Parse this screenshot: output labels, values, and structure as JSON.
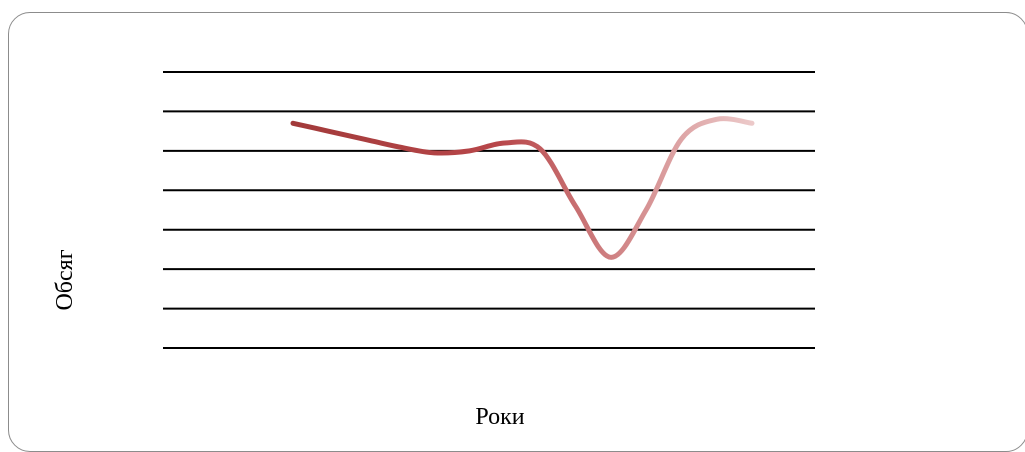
{
  "chart_data": {
    "type": "line",
    "title": "",
    "xlabel": "Роки",
    "ylabel": "Обсяг",
    "grid": true,
    "x": [
      0,
      1,
      2,
      3,
      4,
      5,
      6,
      7,
      8,
      9,
      10,
      11,
      12,
      13
    ],
    "ylim": [
      0,
      7
    ],
    "series": [
      {
        "values": [
          5.7,
          5.5,
          5.3,
          5.1,
          4.95,
          5.0,
          5.2,
          5.05,
          3.6,
          2.3,
          3.5,
          5.3,
          5.8,
          5.7
        ],
        "color_start": "#a23a3a",
        "color_end": "#ecc9c9"
      }
    ],
    "colors": {
      "grid": "#000000",
      "frame": "#8c8c8c"
    }
  }
}
